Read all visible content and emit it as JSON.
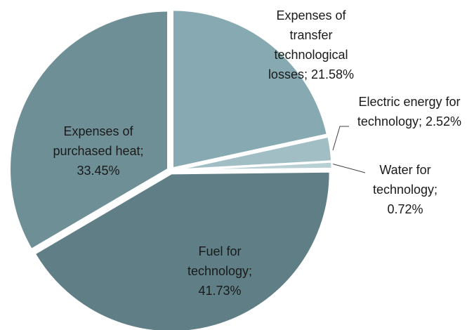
{
  "chart_data": {
    "type": "pie",
    "categories": [
      "Expenses of transfer technological losses;",
      "Electric energy for technology;",
      "Water for technology;",
      "Fuel for technology;",
      "Expenses of purchased heat;"
    ],
    "values": [
      21.58,
      2.52,
      0.72,
      41.73,
      33.45
    ],
    "value_labels": [
      "21.58%",
      "2.52%",
      "0.72%",
      "41.73%",
      "33.45%"
    ],
    "colors": [
      "#87a9b1",
      "#a2bec5",
      "#b8cfd4",
      "#5f7e85",
      "#6f8f97"
    ]
  }
}
